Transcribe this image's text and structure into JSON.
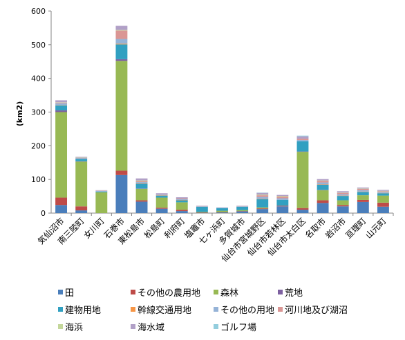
{
  "chart_data": {
    "type": "bar",
    "stacked": true,
    "title": "",
    "xlabel": "",
    "ylabel": "(km2)",
    "ylim": [
      0,
      600
    ],
    "yticks": [
      0,
      100,
      200,
      300,
      400,
      500,
      600
    ],
    "grid": false,
    "legend_position": "bottom",
    "categories": [
      "気仙沼市",
      "南三陸町",
      "女川町",
      "石巻市",
      "東松島市",
      "松島町",
      "利府町",
      "塩竈市",
      "七ヶ浜町",
      "多賀城市",
      "仙台市宮城野区",
      "仙台市若林区",
      "仙台市太白区",
      "名取市",
      "岩沼市",
      "亘理町",
      "山元町"
    ],
    "series": [
      {
        "name": "田",
        "color": "#4a7ebb",
        "values": [
          24,
          8,
          0,
          113,
          34,
          13,
          6,
          1,
          2,
          5,
          12,
          20,
          10,
          30,
          20,
          33,
          19
        ]
      },
      {
        "name": "その他の農用地",
        "color": "#be4b48",
        "values": [
          22,
          12,
          0,
          13,
          4,
          3,
          4,
          1,
          1,
          1,
          2,
          2,
          5,
          8,
          4,
          6,
          12
        ]
      },
      {
        "name": "森林",
        "color": "#98b954",
        "values": [
          254,
          133,
          62,
          326,
          34,
          30,
          22,
          2,
          4,
          3,
          3,
          0,
          167,
          30,
          14,
          14,
          21
        ]
      },
      {
        "name": "荒地",
        "color": "#7d60a0",
        "values": [
          5,
          1,
          0,
          5,
          1,
          0,
          0,
          0,
          0,
          0,
          0,
          0,
          1,
          1,
          0,
          0,
          0
        ]
      },
      {
        "name": "建物用地",
        "color": "#31a0c1",
        "values": [
          15,
          7,
          2,
          44,
          14,
          6,
          6,
          15,
          8,
          10,
          24,
          17,
          30,
          15,
          13,
          10,
          7
        ]
      },
      {
        "name": "幹線交通用地",
        "color": "#f79646",
        "values": [
          1,
          0,
          0,
          2,
          1,
          1,
          1,
          0,
          0,
          0,
          1,
          0,
          0,
          1,
          1,
          1,
          1
        ]
      },
      {
        "name": "その他の用地",
        "color": "#95b3d7",
        "values": [
          5,
          2,
          2,
          14,
          4,
          2,
          3,
          1,
          1,
          1,
          6,
          5,
          4,
          6,
          4,
          4,
          3
        ]
      },
      {
        "name": "河川地及び湖沼",
        "color": "#da9694",
        "values": [
          2,
          1,
          1,
          25,
          3,
          1,
          2,
          1,
          0,
          1,
          5,
          5,
          4,
          5,
          4,
          4,
          2
        ]
      },
      {
        "name": "海浜",
        "color": "#c4d79b",
        "values": [
          1,
          1,
          0,
          2,
          2,
          0,
          0,
          0,
          0,
          0,
          2,
          2,
          0,
          1,
          1,
          1,
          1
        ]
      },
      {
        "name": "海水域",
        "color": "#b1a0c7",
        "values": [
          6,
          2,
          1,
          12,
          6,
          3,
          3,
          1,
          1,
          1,
          5,
          3,
          7,
          4,
          4,
          3,
          3
        ]
      },
      {
        "name": "ゴルフ場",
        "color": "#93cddd",
        "values": [
          0,
          0,
          0,
          0,
          0,
          0,
          0,
          0,
          0,
          0,
          1,
          0,
          2,
          0,
          0,
          0,
          0
        ]
      }
    ]
  }
}
